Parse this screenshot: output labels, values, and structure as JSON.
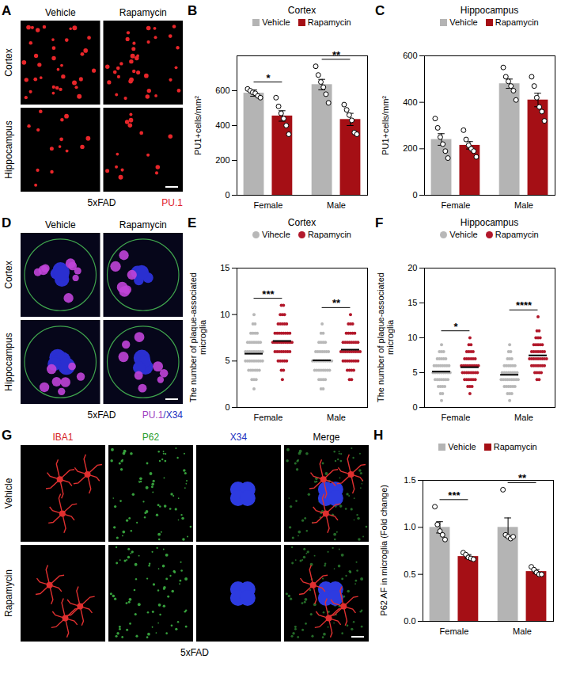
{
  "panels": [
    {
      "panel": "A",
      "columns": [
        "Vehicle",
        "Rapamycin"
      ],
      "rows": [
        "Cortex",
        "Hippocampus"
      ],
      "caption": "5xFAD",
      "stain": "PU.1"
    },
    {
      "panel": "D",
      "columns": [
        "Vehicle",
        "Rapamycin"
      ],
      "rows": [
        "Cortex",
        "Hippocampus"
      ],
      "caption": "5xFAD",
      "stain": "PU.1/X34"
    },
    {
      "panel": "G",
      "columns": [
        "IBA1",
        "P62",
        "X34",
        "Merge"
      ],
      "rows": [
        "Vehicle",
        "Rapamycin"
      ],
      "caption": "5xFAD"
    }
  ],
  "chart_data": [
    {
      "panel": "B",
      "type": "bar",
      "title": "Cortex",
      "y_label": "PU1+cells/mm²",
      "categories": [
        "Female",
        "Male"
      ],
      "ylim": [
        0,
        800
      ],
      "yticks": [
        0,
        200,
        400,
        600
      ],
      "legend": "top",
      "series": [
        {
          "name": "Vehicle",
          "color": "#b4b4b4",
          "values": [
            586,
            635
          ],
          "errors": [
            18,
            30
          ],
          "points": [
            [
              610,
              600,
              590,
              585,
              570,
              560
            ],
            [
              740,
              690,
              650,
              620,
              580,
              530
            ]
          ]
        },
        {
          "name": "Rapamycin",
          "color": "#a50f15",
          "values": [
            455,
            435
          ],
          "errors": [
            30,
            35
          ],
          "points": [
            [
              560,
              510,
              470,
              440,
              400,
              350
            ],
            [
              520,
              490,
              460,
              430,
              360,
              350
            ]
          ]
        }
      ],
      "annotations": [
        {
          "category": "Female",
          "label": "*"
        },
        {
          "category": "Male",
          "label": "**"
        }
      ]
    },
    {
      "panel": "C",
      "type": "bar",
      "title": "Hippocampus",
      "y_label": "PU1+cells/mm²",
      "categories": [
        "Female",
        "Male"
      ],
      "ylim": [
        0,
        600
      ],
      "yticks": [
        0,
        200,
        400,
        600
      ],
      "legend": "top",
      "series": [
        {
          "name": "Vehicle",
          "color": "#b4b4b4",
          "values": [
            240,
            480
          ],
          "errors": [
            25,
            20
          ],
          "points": [
            [
              330,
              290,
              250,
              220,
              190,
              160
            ],
            [
              550,
              510,
              490,
              470,
              450,
              410
            ]
          ]
        },
        {
          "name": "Rapamycin",
          "color": "#a50f15",
          "values": [
            215,
            410
          ],
          "errors": [
            16,
            29
          ],
          "points": [
            [
              280,
              240,
              215,
              200,
              190,
              165
            ],
            [
              510,
              470,
              420,
              380,
              360,
              320
            ]
          ]
        }
      ]
    },
    {
      "panel": "E",
      "type": "scatter",
      "marker": "circle",
      "title": "Cortex",
      "y_label": "The number of plaque-associated microglia",
      "categories": [
        "Female",
        "Male"
      ],
      "ylim": [
        0,
        15
      ],
      "yticks": [
        0,
        5,
        10,
        15
      ],
      "legend": "top",
      "series": [
        {
          "name": "Vihecle",
          "color": "#b8b8b8",
          "values": [
            [
              2,
              3,
              3,
              3,
              4,
              4,
              4,
              4,
              4,
              4,
              5,
              5,
              5,
              5,
              5,
              5,
              5,
              5,
              5,
              6,
              6,
              6,
              6,
              6,
              6,
              6,
              6,
              6,
              7,
              7,
              7,
              7,
              7,
              7,
              7,
              8,
              8,
              8,
              8,
              9,
              9,
              10
            ],
            [
              2,
              2,
              3,
              3,
              3,
              3,
              4,
              4,
              4,
              4,
              4,
              4,
              4,
              4,
              5,
              5,
              5,
              5,
              5,
              5,
              5,
              5,
              5,
              5,
              6,
              6,
              6,
              6,
              6,
              6,
              6,
              7,
              7,
              7,
              7,
              8,
              8,
              9
            ]
          ]
        },
        {
          "name": "Rapamycin",
          "color": "#b2182b",
          "values": [
            [
              3,
              4,
              4,
              5,
              5,
              5,
              5,
              5,
              6,
              6,
              6,
              6,
              6,
              6,
              6,
              6,
              7,
              7,
              7,
              7,
              7,
              7,
              7,
              7,
              7,
              7,
              8,
              8,
              8,
              8,
              8,
              8,
              8,
              8,
              9,
              9,
              9,
              9,
              9,
              10,
              10,
              10,
              11,
              11
            ],
            [
              3,
              3,
              4,
              4,
              4,
              4,
              5,
              5,
              5,
              5,
              5,
              5,
              5,
              5,
              6,
              6,
              6,
              6,
              6,
              6,
              6,
              6,
              6,
              6,
              7,
              7,
              7,
              7,
              7,
              7,
              7,
              7,
              8,
              8,
              8,
              8,
              8,
              9,
              9,
              9,
              10
            ]
          ]
        }
      ],
      "annotations": [
        {
          "category": "Female",
          "label": "***"
        },
        {
          "category": "Male",
          "label": "**"
        }
      ]
    },
    {
      "panel": "F",
      "type": "scatter",
      "marker": "circle",
      "title": "Hippocampus",
      "y_label": "The number of plaque-associated microglia",
      "categories": [
        "Female",
        "Male"
      ],
      "ylim": [
        0,
        20
      ],
      "yticks": [
        0,
        5,
        10,
        15,
        20
      ],
      "legend": "top",
      "series": [
        {
          "name": "Vehicle",
          "color": "#b8b8b8",
          "values": [
            [
              1,
              2,
              2,
              3,
              3,
              3,
              3,
              4,
              4,
              4,
              4,
              4,
              4,
              4,
              5,
              5,
              5,
              5,
              5,
              5,
              5,
              5,
              5,
              6,
              6,
              6,
              6,
              6,
              6,
              6,
              6,
              7,
              7,
              7,
              7,
              7,
              8,
              8,
              8,
              9
            ],
            [
              1,
              2,
              2,
              2,
              3,
              3,
              3,
              3,
              3,
              3,
              4,
              4,
              4,
              4,
              4,
              4,
              4,
              4,
              4,
              5,
              5,
              5,
              5,
              5,
              5,
              5,
              5,
              6,
              6,
              6,
              6,
              6,
              6,
              7,
              7,
              7,
              8,
              8,
              9
            ]
          ]
        },
        {
          "name": "Rapamycin",
          "color": "#b2182b",
          "values": [
            [
              2,
              3,
              3,
              3,
              4,
              4,
              4,
              4,
              4,
              4,
              5,
              5,
              5,
              5,
              5,
              5,
              5,
              5,
              6,
              6,
              6,
              6,
              6,
              6,
              6,
              6,
              6,
              7,
              7,
              7,
              7,
              7,
              7,
              8,
              8,
              8,
              8,
              9,
              9,
              10
            ],
            [
              4,
              4,
              5,
              5,
              5,
              5,
              6,
              6,
              6,
              6,
              6,
              6,
              6,
              7,
              7,
              7,
              7,
              7,
              7,
              7,
              7,
              7,
              8,
              8,
              8,
              8,
              8,
              8,
              8,
              9,
              9,
              9,
              9,
              9,
              10,
              10,
              10,
              11,
              11,
              13
            ]
          ]
        }
      ],
      "annotations": [
        {
          "category": "Female",
          "label": "*"
        },
        {
          "category": "Male",
          "label": "****"
        }
      ]
    },
    {
      "panel": "H",
      "type": "bar",
      "y_label": "P62 AF in microglia (Fold change)",
      "categories": [
        "Female",
        "Male"
      ],
      "ylim": [
        0,
        1.5
      ],
      "yticks": [
        {
          "value": 0,
          "label": "0.0"
        },
        {
          "value": 0.5,
          "label": "0.5"
        },
        {
          "value": 1,
          "label": "1.0"
        },
        {
          "value": 1.5,
          "label": "1.5"
        }
      ],
      "legend": "top",
      "series": [
        {
          "name": "Vehicle",
          "color": "#b4b4b4",
          "values": [
            1.0,
            1.0
          ],
          "errors": [
            0.06,
            0.1
          ],
          "points": [
            [
              1.22,
              1.03,
              0.96,
              0.92,
              0.87
            ],
            [
              1.4,
              0.92,
              0.9,
              0.88,
              0.9
            ]
          ]
        },
        {
          "name": "Rapamycin",
          "color": "#a50f15",
          "values": [
            0.69,
            0.53
          ],
          "errors": [
            0.02,
            0.02
          ],
          "points": [
            [
              0.73,
              0.71,
              0.68,
              0.67,
              0.66
            ],
            [
              0.58,
              0.55,
              0.52,
              0.5,
              0.5
            ]
          ]
        }
      ],
      "annotations": [
        {
          "category": "Female",
          "label": "***"
        },
        {
          "category": "Male",
          "label": "**"
        }
      ]
    }
  ]
}
